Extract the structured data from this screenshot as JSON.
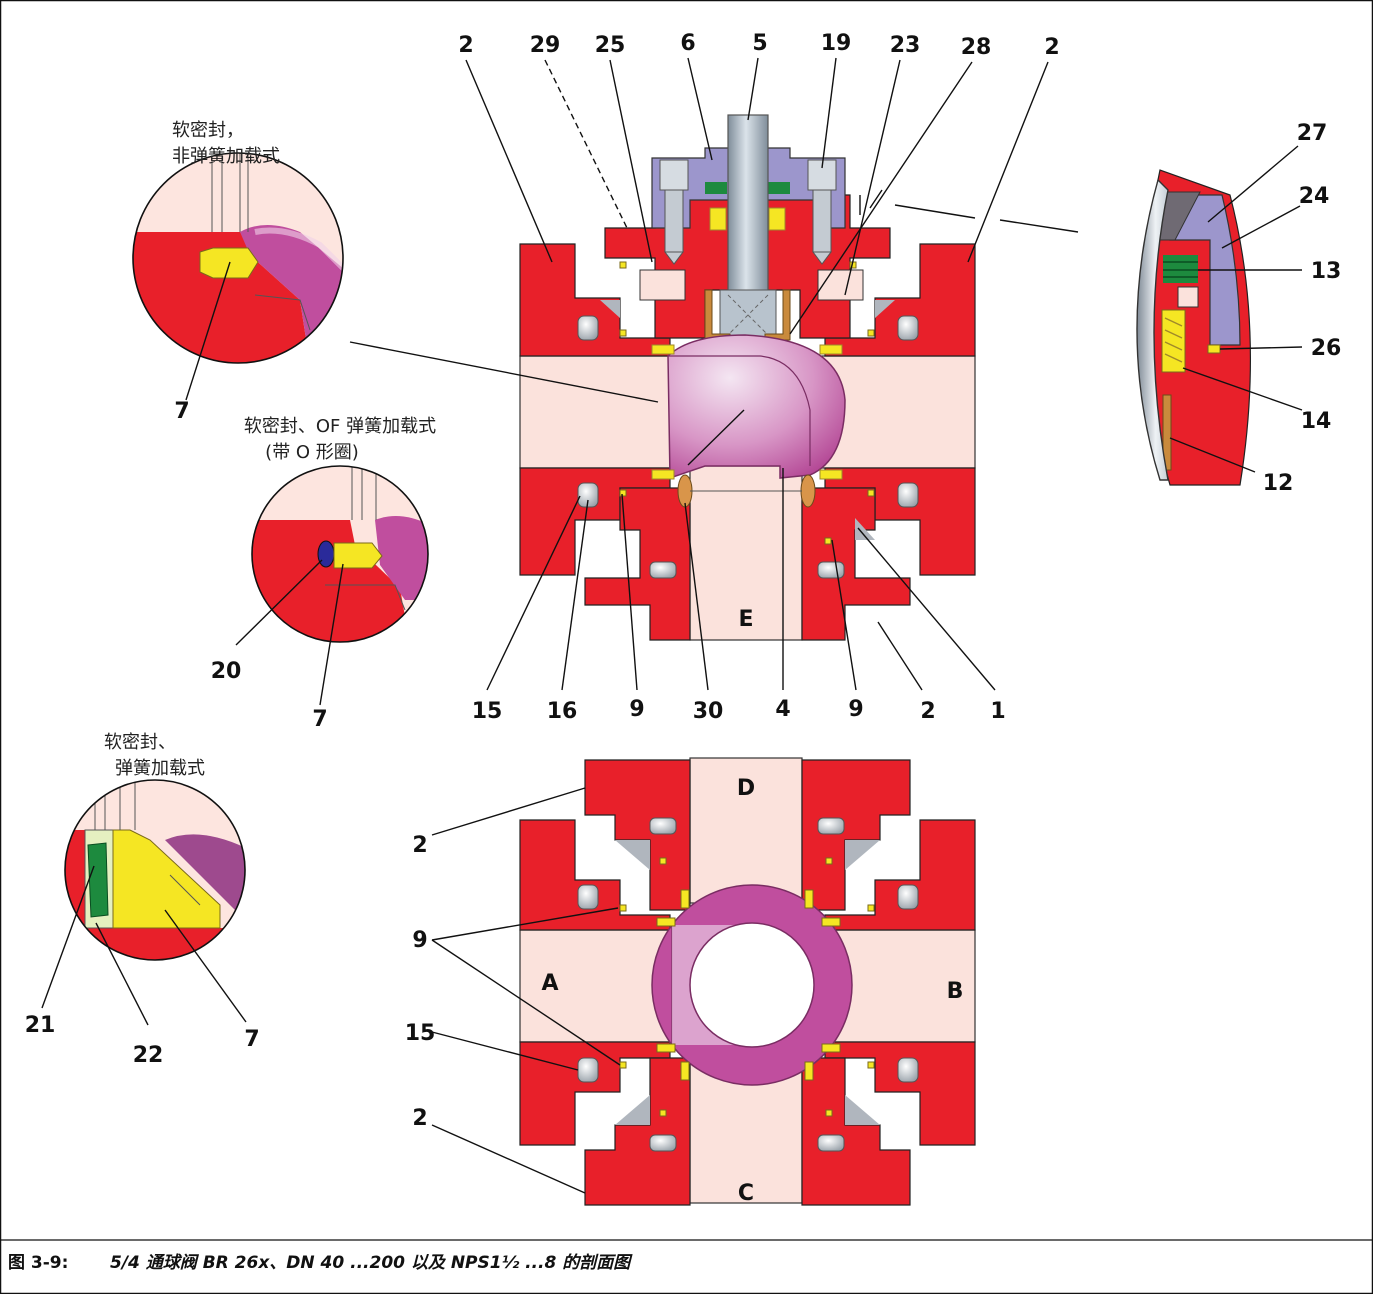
{
  "diagram": {
    "top_labels": [
      "2",
      "29",
      "25",
      "6",
      "5",
      "19",
      "23",
      "28",
      "2"
    ],
    "right_labels": [
      "27",
      "24",
      "13",
      "26",
      "14",
      "12"
    ],
    "mid_bottom_labels": [
      "15",
      "16",
      "9",
      "30",
      "4",
      "9",
      "2",
      "1"
    ],
    "lower_labels": [
      "2",
      "9",
      "15",
      "2"
    ],
    "ports": {
      "a": "A",
      "b": "B",
      "c": "C",
      "d": "D",
      "e": "E"
    },
    "detail1": {
      "caption_line1": "软密封，",
      "caption_line2": "非弹簧加载式",
      "label": "7"
    },
    "detail2": {
      "caption_line1": "软密封、OF 弹簧加载式",
      "caption_line2": "(带 O 形圈)",
      "label_a": "20",
      "label_b": "7"
    },
    "detail3": {
      "caption_line1": "软密封、",
      "caption_line2": "弹簧加载式",
      "label_a": "21",
      "label_b": "22",
      "label_c": "7"
    }
  },
  "figure": {
    "number": "图 3-9:",
    "caption": "5/4 通球阀 BR 26x、DN 40 ...200 以及 NPS1½ ...8 的剖面图"
  },
  "colors": {
    "body_red": "#e8202a",
    "bore": "#fbe2dc",
    "ball_magenta": "#c04e9e",
    "bonnet_lavender": "#9c96cc",
    "seal_yellow": "#f5e623",
    "spring_green": "#1d8a3e",
    "stem_grey": "#a9b6c2",
    "oring_blue": "#2a2a9a",
    "bronze": "#c98a3c"
  },
  "icons": [
    "hex-bolt-icon",
    "ball-icon",
    "stem-icon"
  ]
}
